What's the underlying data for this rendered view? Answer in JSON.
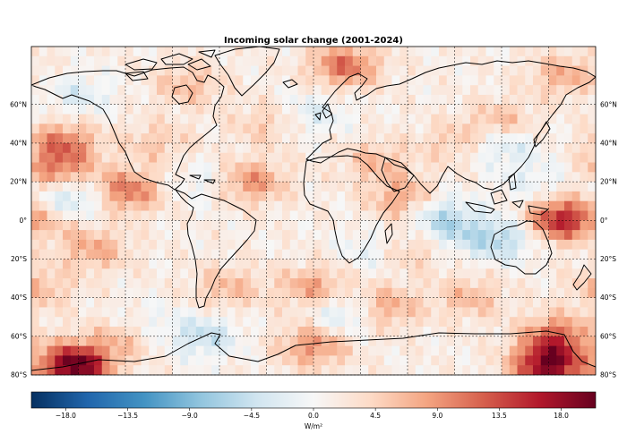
{
  "title": "Incoming solar change (2001-2024)",
  "lat_labels": [
    "60°N",
    "40°N",
    "20°N",
    "0°",
    "20°S",
    "40°S",
    "60°S",
    "80°S"
  ],
  "lat_values": [
    60,
    40,
    20,
    0,
    -20,
    -40,
    -60,
    -80
  ],
  "colorbar": {
    "unit": "W/m²",
    "tick_labels": [
      "−18.0",
      "−13.5",
      "−9.0",
      "−4.5",
      "0.0",
      "4.5",
      "9.0",
      "13.5",
      "18.0"
    ],
    "tick_values": [
      -18,
      -13.5,
      -9,
      -4.5,
      0,
      4.5,
      9,
      13.5,
      18
    ],
    "range": [
      -20.5,
      20.5
    ],
    "colormap": "RdBu_r",
    "colors": [
      "#053061",
      "#2166ac",
      "#4393c3",
      "#92c5de",
      "#d1e5f0",
      "#f7f7f7",
      "#fddbc7",
      "#f4a582",
      "#d6604d",
      "#b2182b",
      "#67001f"
    ]
  },
  "chart_data": {
    "type": "heatmap",
    "projection": "PlateCarree",
    "extent": {
      "lon": [
        -180,
        180
      ],
      "lat": [
        -80,
        90
      ]
    },
    "variable": "Incoming solar change",
    "period": "2001-2024",
    "unit": "W/m²",
    "vmin": -20.5,
    "vmax": 20.5,
    "gridlines": true,
    "coastlines": true,
    "cell_deg": 5,
    "notable_anomalies": [
      {
        "lon": 160,
        "lat": 0,
        "value": 17
      },
      {
        "lon": -152,
        "lat": -75,
        "value": 20
      },
      {
        "lon": 150,
        "lat": -75,
        "value": 18
      },
      {
        "lon": -163,
        "lat": 25,
        "value": 9
      },
      {
        "lon": -120,
        "lat": 15,
        "value": 10
      },
      {
        "lon": -40,
        "lat": 20,
        "value": 8
      },
      {
        "lon": 60,
        "lat": 10,
        "value": 9
      },
      {
        "lon": -160,
        "lat": 40,
        "value": 9
      },
      {
        "lon": 20,
        "lat": 80,
        "value": 10
      },
      {
        "lon": -170,
        "lat": 0,
        "value": 6
      },
      {
        "lon": 0,
        "lat": -65,
        "value": 8
      },
      {
        "lon": 155,
        "lat": -60,
        "value": 10
      },
      {
        "lon": 45,
        "lat": -45,
        "value": 7
      },
      {
        "lon": -175,
        "lat": -35,
        "value": 5
      },
      {
        "lon": 0,
        "lat": -35,
        "value": 7
      },
      {
        "lon": -55,
        "lat": -35,
        "value": 5
      },
      {
        "lon": 100,
        "lat": -40,
        "value": 5
      },
      {
        "lon": 120,
        "lat": 50,
        "value": 6
      },
      {
        "lon": 90,
        "lat": 40,
        "value": 4
      },
      {
        "lon": -100,
        "lat": 40,
        "value": 4
      },
      {
        "lon": 40,
        "lat": 30,
        "value": 5
      },
      {
        "lon": -80,
        "lat": 70,
        "value": 5
      },
      {
        "lon": 160,
        "lat": 75,
        "value": 6
      },
      {
        "lon": -30,
        "lat": 50,
        "value": 4
      },
      {
        "lon": 60,
        "lat": -15,
        "value": 5
      },
      {
        "lon": -140,
        "lat": -15,
        "value": 6
      },
      {
        "lon": -120,
        "lat": -60,
        "value": 6
      },
      {
        "lon": 75,
        "lat": 5,
        "value": -7
      },
      {
        "lon": 90,
        "lat": -5,
        "value": -5
      },
      {
        "lon": 120,
        "lat": 40,
        "value": -6
      },
      {
        "lon": -150,
        "lat": 10,
        "value": -5
      },
      {
        "lon": -160,
        "lat": 15,
        "value": -4
      },
      {
        "lon": -70,
        "lat": -60,
        "value": -6
      },
      {
        "lon": -110,
        "lat": -55,
        "value": -4
      },
      {
        "lon": 40,
        "lat": -15,
        "value": -4
      },
      {
        "lon": 20,
        "lat": -48,
        "value": -6
      },
      {
        "lon": 120,
        "lat": -10,
        "value": -7
      },
      {
        "lon": 0,
        "lat": 55,
        "value": -4
      },
      {
        "lon": -150,
        "lat": 65,
        "value": -4
      },
      {
        "lon": 175,
        "lat": -2,
        "value": -5
      },
      {
        "lon": -70,
        "lat": 20,
        "value": -3
      },
      {
        "lon": 140,
        "lat": 20,
        "value": -3
      }
    ]
  }
}
